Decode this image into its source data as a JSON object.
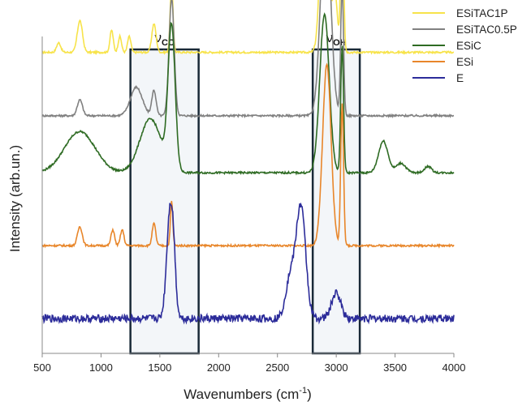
{
  "chart_data": {
    "type": "line",
    "title": "",
    "xlabel_main": "Wavenumbers (cm",
    "xlabel_sup": "-1",
    "xlabel_tail": ")",
    "ylabel": "Intensity (arb.un.)",
    "xlim": [
      500,
      4000
    ],
    "x_ticks": [
      "500",
      "1000",
      "1500",
      "2000",
      "2500",
      "3000",
      "3500",
      "4000"
    ],
    "legend_position": "top-right",
    "regions": [
      {
        "label_main": "ν",
        "label_sub": "CC",
        "x_range": [
          1250,
          1830
        ]
      },
      {
        "label_main": "ν",
        "label_sub": "OH",
        "x_range": [
          2800,
          3200
        ]
      }
    ],
    "series": [
      {
        "name": "ESiTAC1P",
        "color": "#f7e34a",
        "baseline": 0.95,
        "peaks": [
          [
            640,
            0.03,
            18
          ],
          [
            820,
            0.1,
            22
          ],
          [
            1090,
            0.07,
            14
          ],
          [
            1160,
            0.05,
            14
          ],
          [
            1240,
            0.05,
            14
          ],
          [
            1450,
            0.09,
            18
          ],
          [
            1600,
            0.22,
            12
          ],
          [
            2900,
            0.63,
            32
          ],
          [
            2990,
            0.18,
            20
          ],
          [
            3050,
            0.52,
            12
          ]
        ]
      },
      {
        "name": "ESiTAC0.5P",
        "color": "#808080",
        "baseline": 0.75,
        "peaks": [
          [
            820,
            0.05,
            22
          ],
          [
            1300,
            0.09,
            50
          ],
          [
            1450,
            0.08,
            18
          ],
          [
            1600,
            0.37,
            22
          ],
          [
            2910,
            0.65,
            42
          ],
          [
            3050,
            0.41,
            12
          ]
        ]
      },
      {
        "name": "ESiC",
        "color": "#2e6b23",
        "baseline": 0.57,
        "peaks": [
          [
            820,
            0.13,
            130
          ],
          [
            1420,
            0.17,
            90
          ],
          [
            1600,
            0.45,
            30
          ],
          [
            2900,
            0.5,
            40
          ],
          [
            3050,
            0.4,
            12
          ],
          [
            3400,
            0.1,
            40
          ],
          [
            3550,
            0.03,
            40
          ],
          [
            3780,
            0.02,
            30
          ]
        ]
      },
      {
        "name": "ESi",
        "color": "#e8862a",
        "baseline": 0.34,
        "peaks": [
          [
            820,
            0.06,
            20
          ],
          [
            1100,
            0.05,
            15
          ],
          [
            1180,
            0.05,
            15
          ],
          [
            1450,
            0.07,
            15
          ],
          [
            1600,
            0.14,
            10
          ],
          [
            2920,
            0.57,
            36
          ],
          [
            3050,
            0.45,
            12
          ]
        ]
      },
      {
        "name": "E",
        "color": "#2c2c9a",
        "baseline": 0.11,
        "peaks": [
          [
            1590,
            0.36,
            30
          ],
          [
            1620,
            0.05,
            15
          ],
          [
            2610,
            0.13,
            40
          ],
          [
            2700,
            0.35,
            40
          ],
          [
            3000,
            0.08,
            40
          ]
        ]
      }
    ]
  }
}
